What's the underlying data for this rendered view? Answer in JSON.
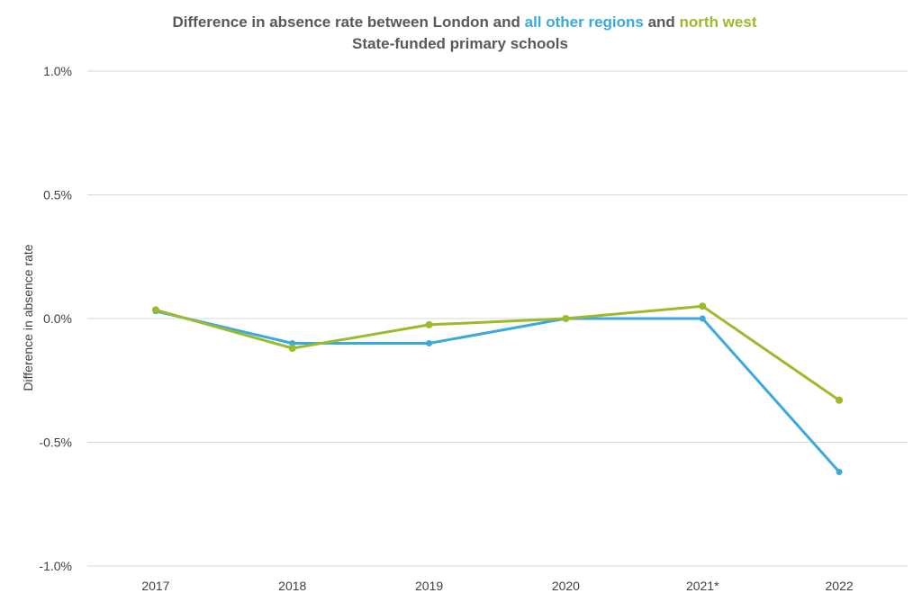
{
  "colors": {
    "series_all_other_regions": "#3aaadc",
    "series_north_west": "#9bbb2b",
    "title_text": "#595959",
    "gridline": "#d9d9d9"
  },
  "chart_data": {
    "type": "line",
    "title": {
      "line1": [
        "Difference in absence rate between London and ",
        "all other regions",
        " and ",
        "north west"
      ],
      "line2": "State-funded primary schools"
    },
    "xlabel": "",
    "ylabel": "Difference in absence rate",
    "categories": [
      "2017",
      "2018",
      "2019",
      "2020",
      "2021*",
      "2022"
    ],
    "ylim": [
      -1.0,
      1.0
    ],
    "yticks": [
      1.0,
      0.5,
      0.0,
      -0.5,
      -1.0
    ],
    "ytick_labels": [
      "1.0%",
      "0.5%",
      "0.0%",
      "-0.5%",
      "-1.0%"
    ],
    "grid": true,
    "series": [
      {
        "name": "all other regions",
        "values": [
          0.03,
          -0.1,
          -0.1,
          0.0,
          0.0,
          -0.62
        ]
      },
      {
        "name": "north west",
        "values": [
          0.035,
          -0.12,
          -0.025,
          0.0,
          0.05,
          -0.33
        ]
      }
    ]
  }
}
